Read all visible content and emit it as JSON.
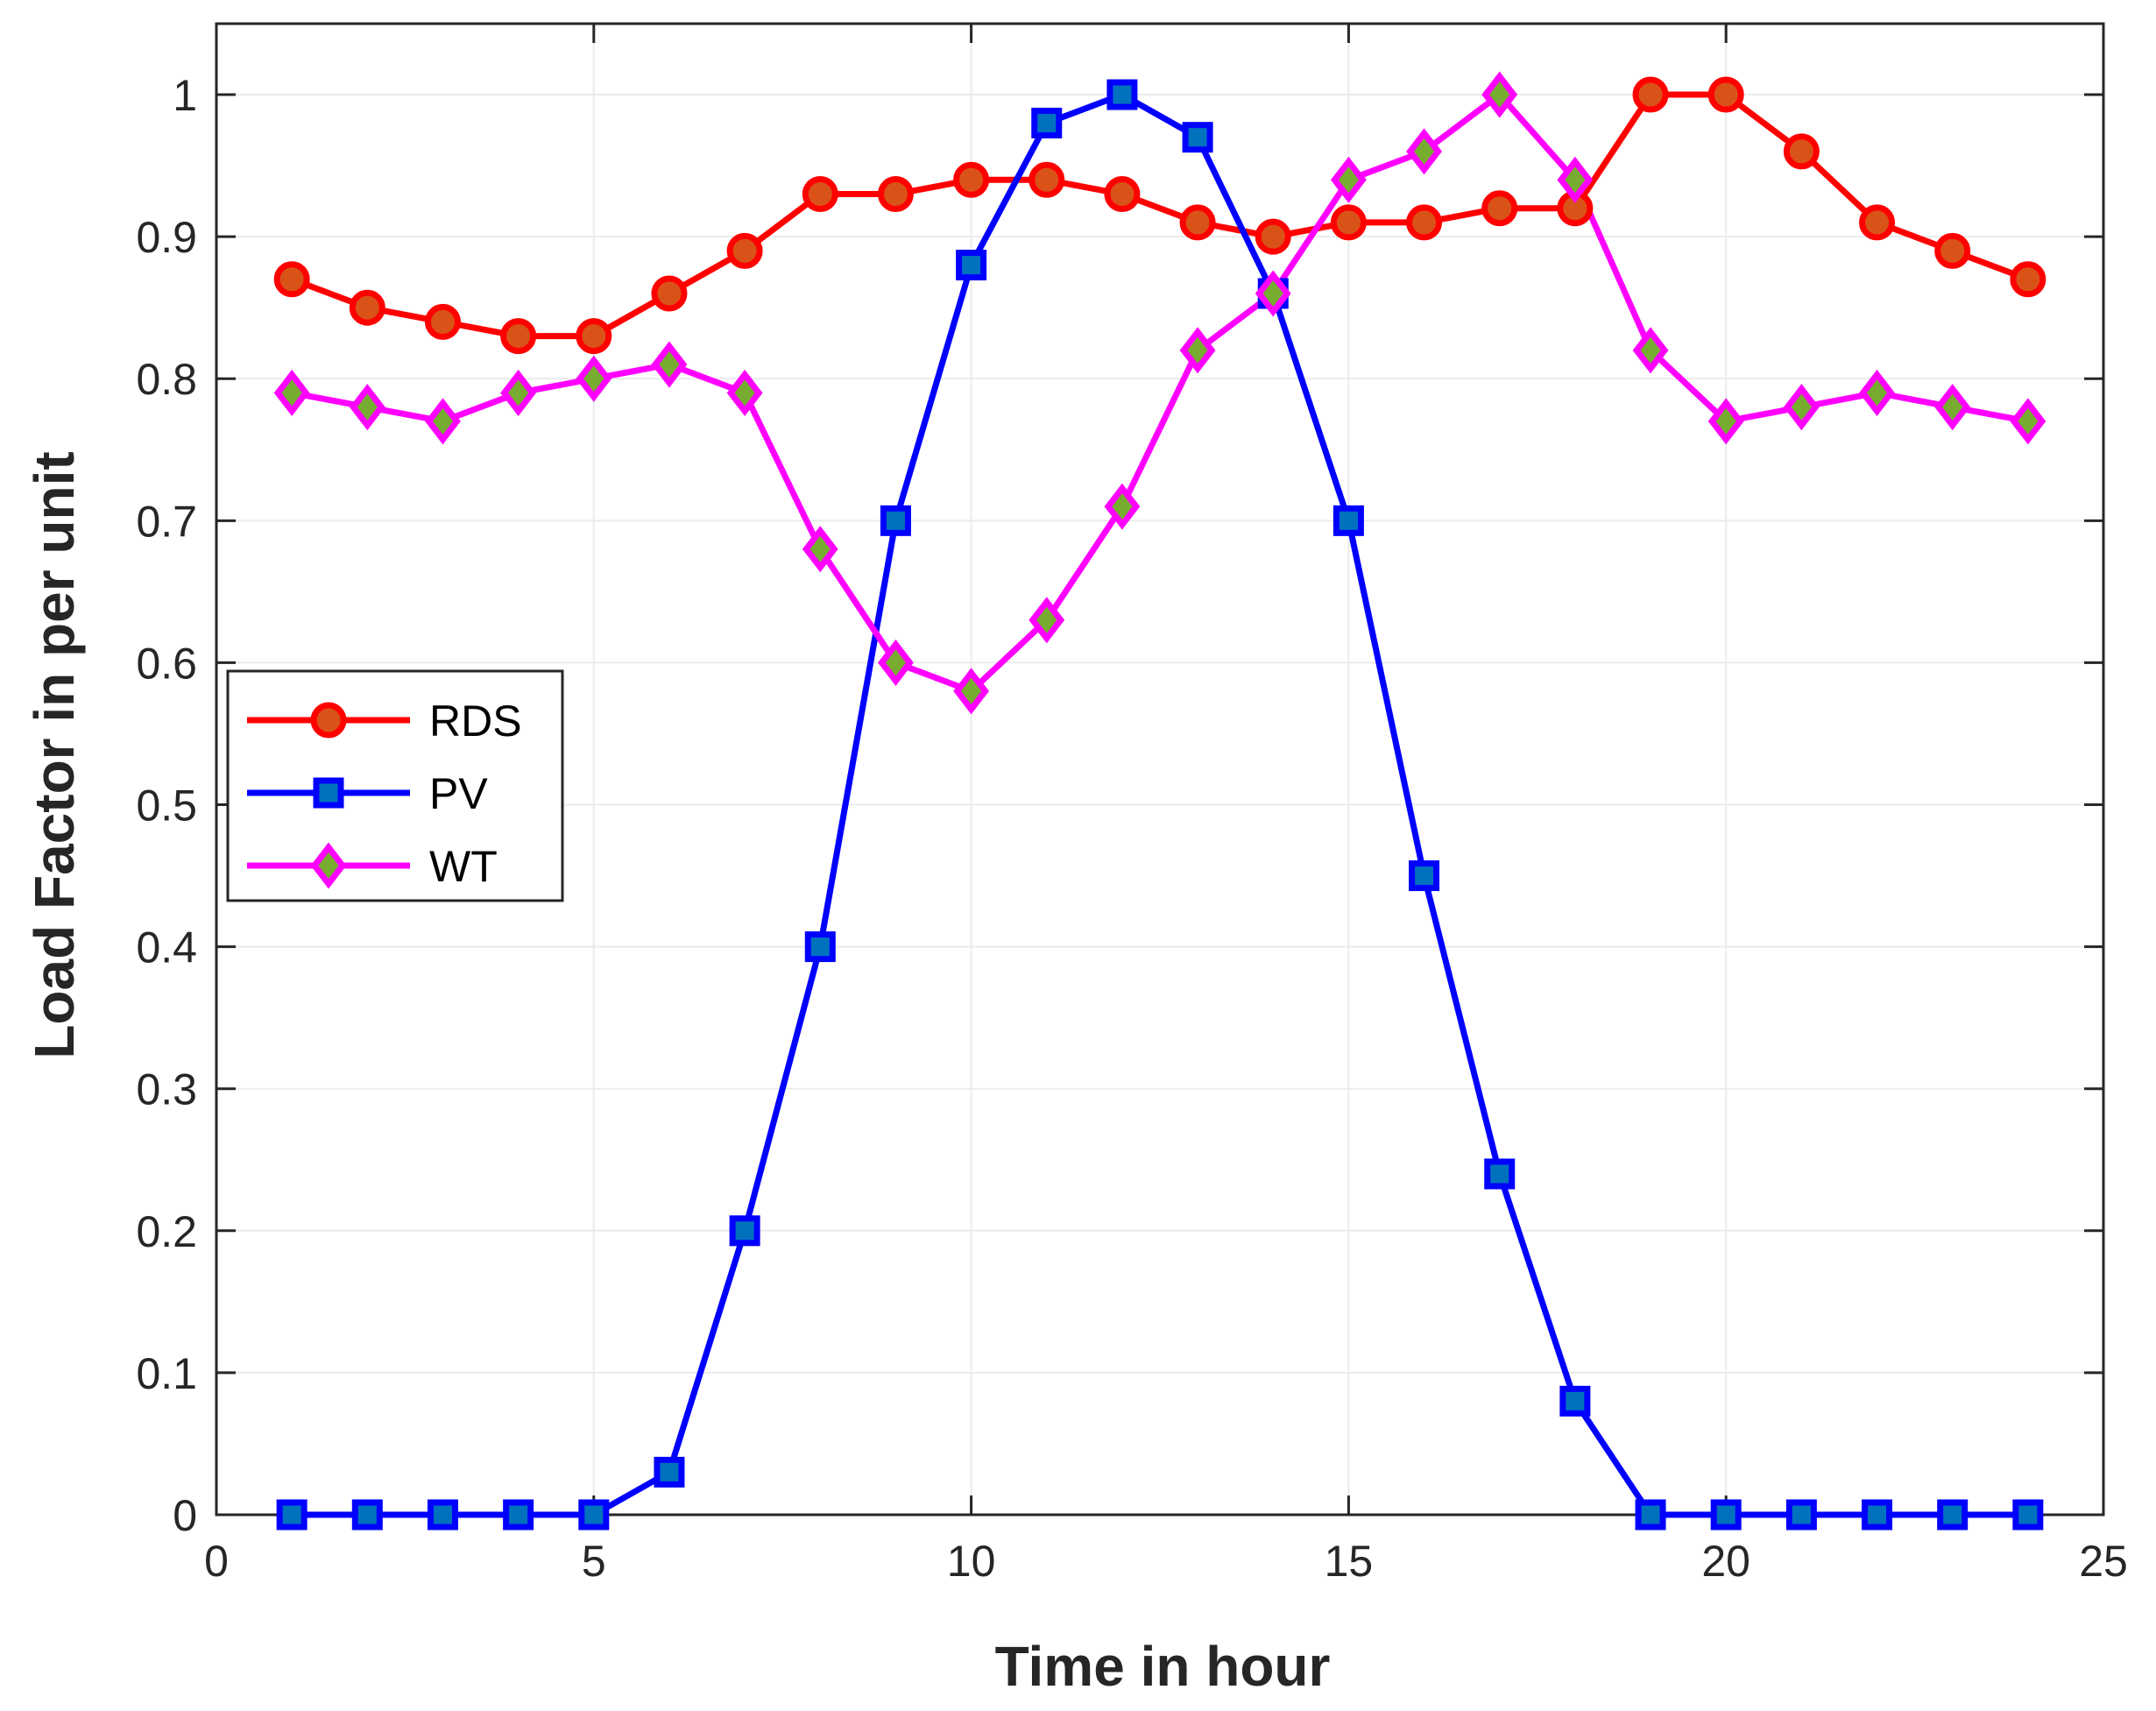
{
  "chart_data": {
    "type": "line",
    "xlabel": "Time in hour",
    "ylabel": "Load Factor in per unit",
    "xlim": [
      0,
      25
    ],
    "ylim": [
      0,
      1.05
    ],
    "xticks": [
      "0",
      "5",
      "10",
      "15",
      "20",
      "25"
    ],
    "yticks": [
      "0",
      "0.1",
      "0.2",
      "0.3",
      "0.4",
      "0.5",
      "0.6",
      "0.7",
      "0.8",
      "0.9",
      "1"
    ],
    "grid": true,
    "legend_position": "middle-left",
    "x": [
      1,
      2,
      3,
      4,
      5,
      6,
      7,
      8,
      9,
      10,
      11,
      12,
      13,
      14,
      15,
      16,
      17,
      18,
      19,
      20,
      21,
      22,
      23,
      24
    ],
    "series": [
      {
        "name": "RDS",
        "color": "#ff0000",
        "marker": "circle",
        "marker_fill": "#d95319",
        "values": [
          0.87,
          0.85,
          0.84,
          0.83,
          0.83,
          0.86,
          0.89,
          0.93,
          0.93,
          0.94,
          0.94,
          0.93,
          0.91,
          0.9,
          0.91,
          0.91,
          0.92,
          0.92,
          1.0,
          1.0,
          0.96,
          0.91,
          0.89,
          0.87
        ]
      },
      {
        "name": "PV",
        "color": "#0000ff",
        "marker": "square",
        "marker_fill": "#0072bd",
        "values": [
          0,
          0,
          0,
          0,
          0,
          0.03,
          0.2,
          0.4,
          0.7,
          0.88,
          0.98,
          1.0,
          0.97,
          0.86,
          0.7,
          0.45,
          0.24,
          0.08,
          0,
          0,
          0,
          0,
          0,
          0
        ]
      },
      {
        "name": "WT",
        "color": "#ff00ff",
        "marker": "diamond",
        "marker_fill": "#77ac30",
        "values": [
          0.79,
          0.78,
          0.77,
          0.79,
          0.8,
          0.81,
          0.79,
          0.68,
          0.6,
          0.58,
          0.63,
          0.71,
          0.82,
          0.86,
          0.94,
          0.96,
          1.0,
          0.94,
          0.82,
          0.77,
          0.78,
          0.79,
          0.78,
          0.77
        ]
      }
    ]
  }
}
